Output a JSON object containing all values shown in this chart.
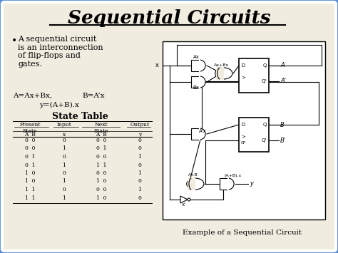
{
  "title": "Sequential Circuits",
  "background_color": "#5b8dd9",
  "inner_bg": "#f0ece0",
  "bullet_text": "A sequential circuit\nis an interconnection\nof flip-flops and\ngates.",
  "eq1a": "A=Ax+Bx,",
  "eq1b": "B=A’x",
  "eq2": "y=(A+B).x",
  "state_table_title": "State Table",
  "table_data": [
    [
      "0  0",
      "0",
      "0  0",
      "0"
    ],
    [
      "0  0",
      "1",
      "0  1",
      "0"
    ],
    [
      "0  1",
      "0",
      "0  0",
      "1"
    ],
    [
      "0  1",
      "1",
      "1  1",
      "0"
    ],
    [
      "1  0",
      "0",
      "0  0",
      "1"
    ],
    [
      "1  0",
      "1",
      "1  0",
      "0"
    ],
    [
      "1  1",
      "0",
      "0  0",
      "1"
    ],
    [
      "1  1",
      "1",
      "1  0",
      "0"
    ]
  ],
  "caption": "Example of a Sequential Circuit"
}
